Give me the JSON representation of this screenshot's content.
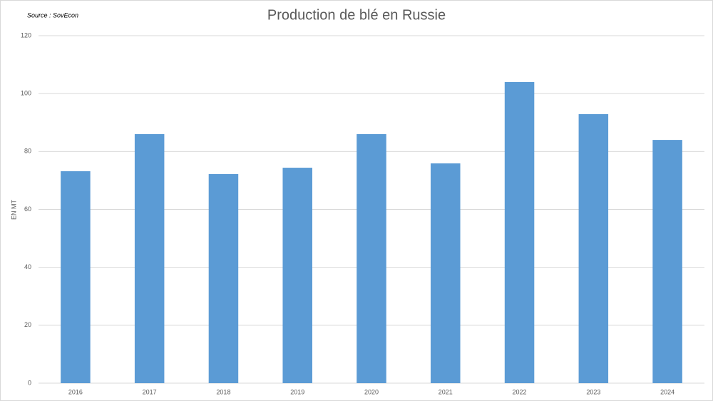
{
  "chart_data": {
    "type": "bar",
    "title": "Production de blé en Russie",
    "source": "Source : SovEcon",
    "y_label": "EN MT",
    "categories": [
      "2016",
      "2017",
      "2018",
      "2019",
      "2020",
      "2021",
      "2022",
      "2023",
      "2024"
    ],
    "values": [
      73.2,
      86.0,
      72.2,
      74.4,
      86.0,
      75.9,
      104.0,
      92.9,
      84.0
    ],
    "color": "#5b9bd5",
    "ylim": [
      0,
      120
    ],
    "yticks": [
      0,
      20,
      40,
      60,
      80,
      100,
      120
    ],
    "grid": true
  }
}
